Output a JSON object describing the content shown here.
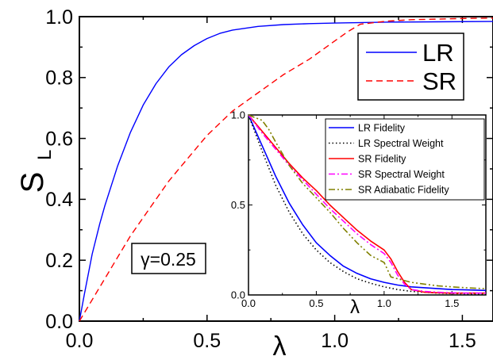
{
  "chart_data": [
    {
      "type": "line",
      "xlabel": "λ",
      "ylabel": "S",
      "ylabel_sub": "L",
      "xlim": [
        0,
        1.62
      ],
      "ylim": [
        0,
        1.0
      ],
      "xticks": [
        "0.0",
        "0.5",
        "1.0",
        "1.5"
      ],
      "yticks": [
        "0.0",
        "0.2",
        "0.4",
        "0.6",
        "0.8",
        "1.0"
      ],
      "annotation": "γ=0.25",
      "legend_position": "top-right",
      "series": [
        {
          "name": "LR",
          "color": "#0000ff",
          "dash": "solid",
          "x": [
            0.0,
            0.02,
            0.05,
            0.08,
            0.1,
            0.15,
            0.2,
            0.25,
            0.3,
            0.35,
            0.4,
            0.45,
            0.5,
            0.55,
            0.6,
            0.7,
            0.8,
            0.9,
            1.0,
            1.2,
            1.4,
            1.62
          ],
          "y": [
            0.0,
            0.09,
            0.22,
            0.32,
            0.38,
            0.51,
            0.62,
            0.71,
            0.78,
            0.835,
            0.875,
            0.905,
            0.928,
            0.945,
            0.956,
            0.968,
            0.974,
            0.977,
            0.979,
            0.982,
            0.983,
            0.984
          ]
        },
        {
          "name": "SR",
          "color": "#ff0000",
          "dash": "dashed",
          "x": [
            0.0,
            0.05,
            0.1,
            0.15,
            0.2,
            0.25,
            0.3,
            0.35,
            0.4,
            0.45,
            0.5,
            0.55,
            0.6,
            0.7,
            0.8,
            0.9,
            1.0,
            1.05,
            1.1,
            1.2,
            1.3,
            1.4,
            1.5,
            1.62
          ],
          "y": [
            0.0,
            0.07,
            0.14,
            0.21,
            0.28,
            0.34,
            0.4,
            0.46,
            0.51,
            0.56,
            0.61,
            0.65,
            0.69,
            0.75,
            0.81,
            0.86,
            0.92,
            0.95,
            0.975,
            0.985,
            0.99,
            0.992,
            0.994,
            0.995
          ]
        }
      ]
    },
    {
      "type": "line",
      "inset": true,
      "xlabel": "λ",
      "ylabel": "",
      "xlim": [
        0,
        1.75
      ],
      "ylim": [
        0,
        1.0
      ],
      "xticks": [
        "0.0",
        "0.5",
        "1.0",
        "1.5"
      ],
      "yticks": [
        "0.0",
        "0.5",
        "1.0"
      ],
      "legend_position": "top-right",
      "series": [
        {
          "name": "LR Fidelity",
          "color": "#0000ff",
          "dash": "solid",
          "x": [
            0.0,
            0.1,
            0.2,
            0.3,
            0.4,
            0.5,
            0.6,
            0.7,
            0.8,
            0.9,
            1.0,
            1.1,
            1.2,
            1.3,
            1.4,
            1.5,
            1.6,
            1.75
          ],
          "y": [
            1.0,
            0.83,
            0.66,
            0.51,
            0.39,
            0.29,
            0.22,
            0.16,
            0.12,
            0.09,
            0.07,
            0.055,
            0.045,
            0.04,
            0.035,
            0.03,
            0.028,
            0.025
          ]
        },
        {
          "name": "LR Spectral Weight",
          "color": "#000000",
          "dash": "dotted",
          "x": [
            0.0,
            0.1,
            0.2,
            0.3,
            0.4,
            0.5,
            0.6,
            0.7,
            0.8,
            0.9,
            1.0,
            1.1,
            1.2,
            1.3,
            1.4,
            1.5,
            1.6,
            1.75
          ],
          "y": [
            1.0,
            0.8,
            0.61,
            0.46,
            0.34,
            0.25,
            0.18,
            0.13,
            0.09,
            0.065,
            0.045,
            0.03,
            0.02,
            0.015,
            0.01,
            0.008,
            0.006,
            0.005
          ]
        },
        {
          "name": "SR Fidelity",
          "color": "#ff0000",
          "dash": "solid",
          "x": [
            0.0,
            0.1,
            0.2,
            0.3,
            0.4,
            0.5,
            0.6,
            0.7,
            0.8,
            0.9,
            1.0,
            1.05,
            1.1,
            1.15,
            1.2,
            1.3,
            1.4,
            1.5,
            1.6,
            1.75
          ],
          "y": [
            1.0,
            0.91,
            0.82,
            0.73,
            0.65,
            0.58,
            0.5,
            0.43,
            0.36,
            0.3,
            0.25,
            0.2,
            0.13,
            0.07,
            0.03,
            0.015,
            0.012,
            0.01,
            0.01,
            0.01
          ]
        },
        {
          "name": "SR Spectral Weight",
          "color": "#ff00ff",
          "dash": "dashdot",
          "x": [
            0.0,
            0.1,
            0.2,
            0.3,
            0.4,
            0.5,
            0.6,
            0.7,
            0.8,
            0.9,
            1.0,
            1.05,
            1.1,
            1.15,
            1.2,
            1.3,
            1.4,
            1.5,
            1.6,
            1.75
          ],
          "y": [
            1.0,
            0.9,
            0.81,
            0.72,
            0.64,
            0.56,
            0.48,
            0.41,
            0.34,
            0.28,
            0.23,
            0.18,
            0.11,
            0.06,
            0.03,
            0.02,
            0.015,
            0.012,
            0.01,
            0.01
          ]
        },
        {
          "name": "SR Adiabatic Fidelity",
          "color": "#808000",
          "dash": "dashdotdot",
          "x": [
            0.0,
            0.1,
            0.15,
            0.2,
            0.3,
            0.4,
            0.5,
            0.6,
            0.7,
            0.8,
            0.9,
            0.95,
            1.0,
            1.05,
            1.1,
            1.2,
            1.3,
            1.4,
            1.5,
            1.6,
            1.75
          ],
          "y": [
            1.0,
            0.97,
            0.92,
            0.85,
            0.72,
            0.62,
            0.54,
            0.46,
            0.37,
            0.29,
            0.22,
            0.2,
            0.18,
            0.1,
            0.09,
            0.07,
            0.06,
            0.05,
            0.045,
            0.04,
            0.035
          ]
        }
      ]
    }
  ]
}
